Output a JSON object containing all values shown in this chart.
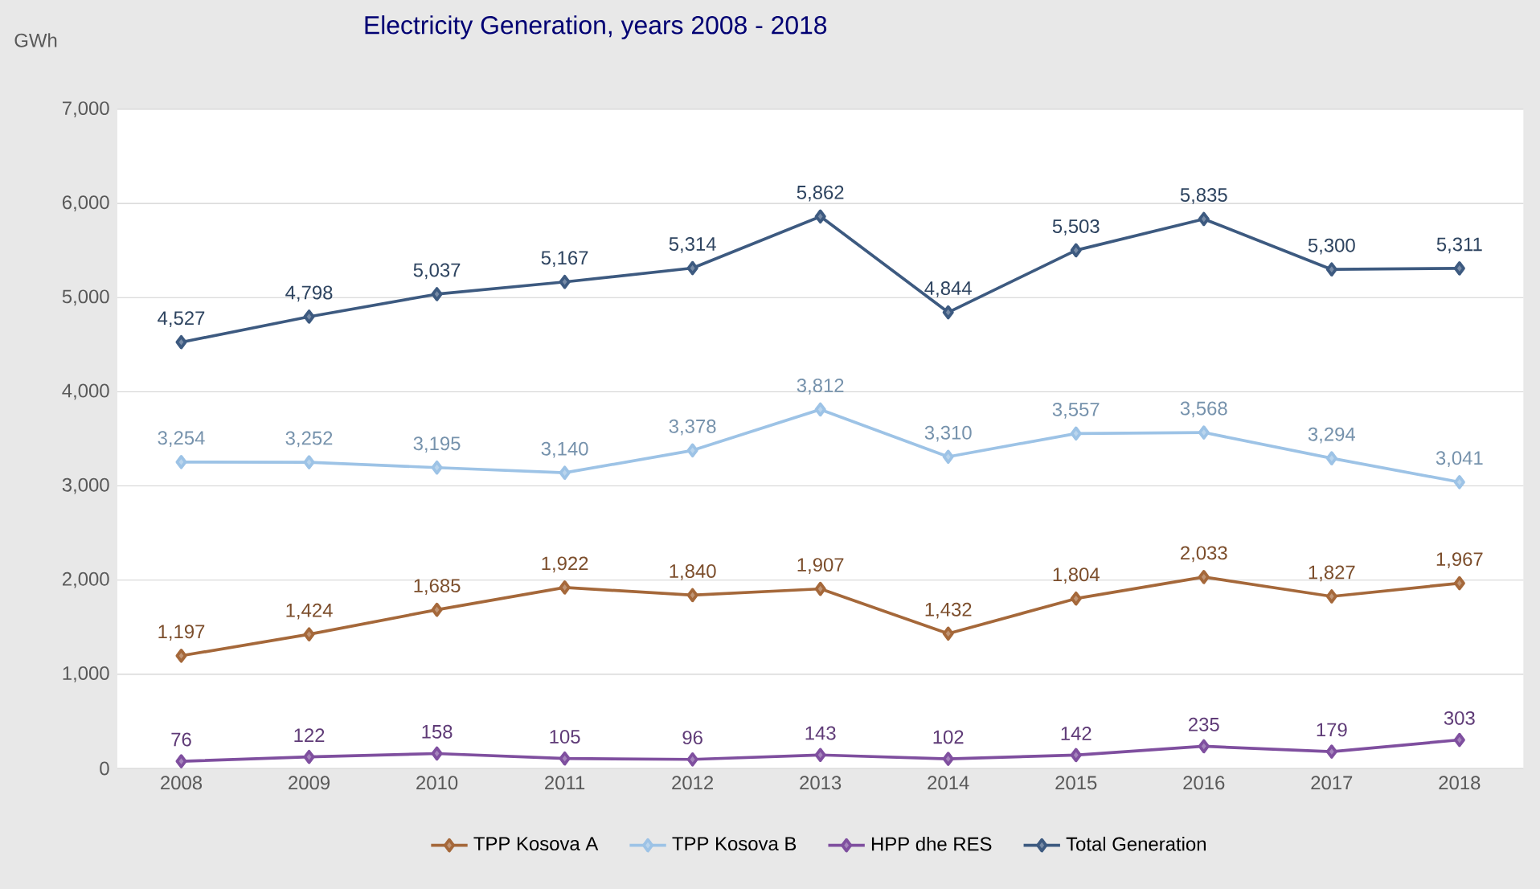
{
  "chart_data": {
    "type": "line",
    "title": "Electricity Generation, years 2008 - 2018",
    "ylabel": "GWh",
    "categories": [
      "2008",
      "2009",
      "2010",
      "2011",
      "2012",
      "2013",
      "2014",
      "2015",
      "2016",
      "2017",
      "2018"
    ],
    "ylim": [
      0,
      7000
    ],
    "yticks": [
      0,
      {
        "value": 1000,
        "label": "1,000"
      },
      {
        "value": 2000,
        "label": "2,000"
      },
      {
        "value": 3000,
        "label": "3,000"
      },
      {
        "value": 4000,
        "label": "4,000"
      },
      {
        "value": 5000,
        "label": "5,000"
      },
      {
        "value": 6000,
        "label": "6,000"
      },
      {
        "value": 7000,
        "label": "7,000"
      }
    ],
    "grid": "y",
    "legend": "bottom",
    "marker": "diamond",
    "line_style": "solid",
    "series": [
      {
        "name": "TPP Kosova A",
        "color": "#a5683a",
        "values": [
          1197,
          1424,
          1685,
          1922,
          1840,
          1907,
          1432,
          1804,
          2033,
          1827,
          1967
        ],
        "value_labels": [
          "1,197",
          "1,424",
          "1,685",
          "1,922",
          "1,840",
          "1,907",
          "1,432",
          "1,804",
          "2,033",
          "1,827",
          "1,967"
        ]
      },
      {
        "name": "TPP Kosova B",
        "color": "#9dc3e6",
        "values": [
          3254,
          3252,
          3195,
          3140,
          3378,
          3812,
          3310,
          3557,
          3568,
          3294,
          3041
        ],
        "value_labels": [
          "3,254",
          "3,252",
          "3,195",
          "3,140",
          "3,378",
          "3,812",
          "3,310",
          "3,557",
          "3,568",
          "3,294",
          "3,041"
        ]
      },
      {
        "name": "HPP dhe RES",
        "color": "#7f4f9f",
        "values": [
          76,
          122,
          158,
          105,
          96,
          143,
          102,
          142,
          235,
          179,
          303
        ],
        "value_labels": [
          "76",
          "122",
          "158",
          "105",
          "96",
          "143",
          "102",
          "142",
          "235",
          "179",
          "303"
        ]
      },
      {
        "name": "Total Generation",
        "color": "#3d5a80",
        "values": [
          4527,
          4798,
          5037,
          5167,
          5314,
          5862,
          4844,
          5503,
          5835,
          5300,
          5311
        ],
        "value_labels": [
          "4,527",
          "4,798",
          "5,037",
          "5,167",
          "5,314",
          "5,862",
          "4,844",
          "5,503",
          "5,835",
          "5,300",
          "5,311"
        ]
      }
    ]
  }
}
